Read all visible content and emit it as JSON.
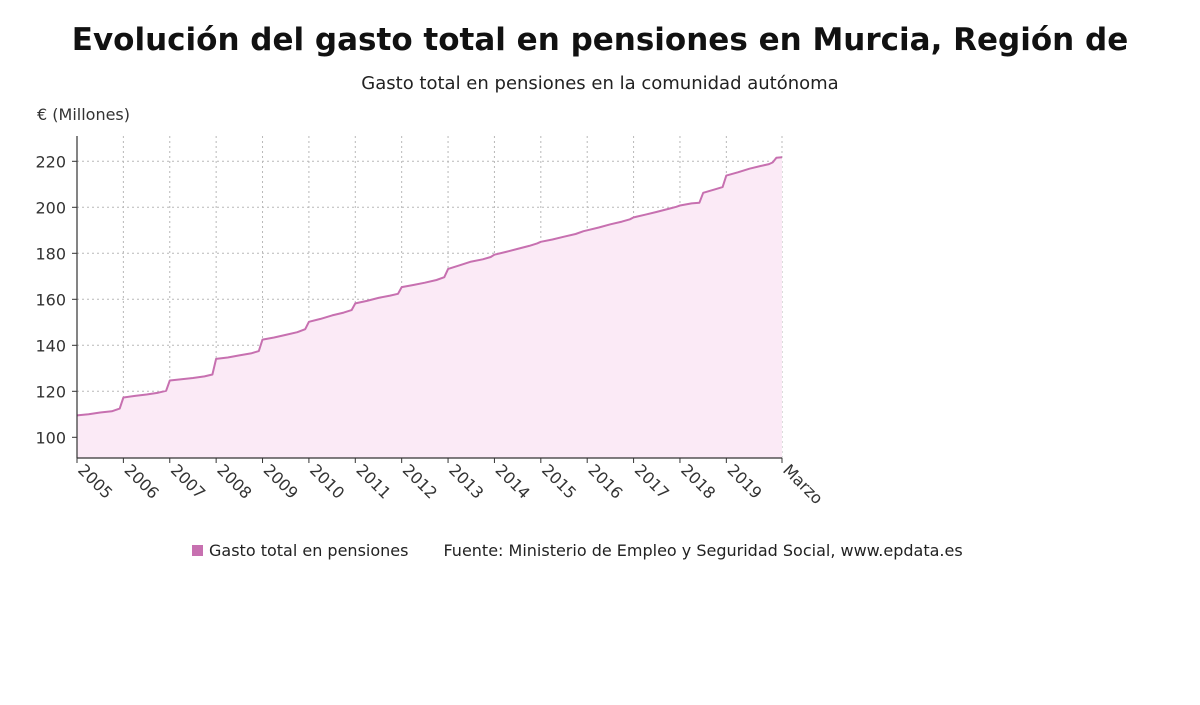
{
  "header": {
    "title": "Evolución del gasto total en pensiones en Murcia, Región de",
    "subtitle": "Gasto total en pensiones en la comunidad autónoma"
  },
  "legend": {
    "series_label": "Gasto total en pensiones",
    "source": "Fuente: Ministerio de Empleo y Seguridad Social, www.epdata.es"
  },
  "colors": {
    "line": "#c770b0",
    "fill": "#fbeaf6",
    "grid": "#b8b8b8",
    "axis": "#333333"
  },
  "chart_data": {
    "type": "area",
    "title": "Evolución del gasto total en pensiones en Murcia, Región de",
    "subtitle": "Gasto total en pensiones en la comunidad autónoma",
    "ylabel": "€ (Millones)",
    "xlabel": "",
    "ylim": [
      91,
      231
    ],
    "yticks": [
      100,
      120,
      140,
      160,
      180,
      200,
      220
    ],
    "xlim": [
      2005.0,
      2020.2
    ],
    "xticks": [
      {
        "value": 2005,
        "label": "2005"
      },
      {
        "value": 2006,
        "label": "2006"
      },
      {
        "value": 2007,
        "label": "2007"
      },
      {
        "value": 2008,
        "label": "2008"
      },
      {
        "value": 2009,
        "label": "2009"
      },
      {
        "value": 2010,
        "label": "2010"
      },
      {
        "value": 2011,
        "label": "2011"
      },
      {
        "value": 2012,
        "label": "2012"
      },
      {
        "value": 2013,
        "label": "2013"
      },
      {
        "value": 2014,
        "label": "2014"
      },
      {
        "value": 2015,
        "label": "2015"
      },
      {
        "value": 2016,
        "label": "2016"
      },
      {
        "value": 2017,
        "label": "2017"
      },
      {
        "value": 2018,
        "label": "2018"
      },
      {
        "value": 2019,
        "label": "2019"
      },
      {
        "value": 2020.2,
        "label": "Marzo"
      }
    ],
    "grid": true,
    "legend_position": "bottom",
    "series": [
      {
        "name": "Gasto total en pensiones",
        "x": [
          2005.0,
          2005.25,
          2005.5,
          2005.75,
          2005.92,
          2006.0,
          2006.25,
          2006.5,
          2006.75,
          2006.92,
          2007.0,
          2007.25,
          2007.5,
          2007.75,
          2007.92,
          2008.0,
          2008.25,
          2008.5,
          2008.75,
          2008.92,
          2009.0,
          2009.25,
          2009.5,
          2009.75,
          2009.92,
          2010.0,
          2010.25,
          2010.5,
          2010.75,
          2010.92,
          2011.0,
          2011.25,
          2011.5,
          2011.75,
          2011.92,
          2012.0,
          2012.25,
          2012.5,
          2012.75,
          2012.92,
          2013.0,
          2013.25,
          2013.5,
          2013.75,
          2013.92,
          2014.0,
          2014.25,
          2014.5,
          2014.75,
          2014.92,
          2015.0,
          2015.25,
          2015.5,
          2015.75,
          2015.92,
          2016.0,
          2016.25,
          2016.5,
          2016.75,
          2016.92,
          2017.0,
          2017.25,
          2017.5,
          2017.75,
          2017.92,
          2018.0,
          2018.25,
          2018.42,
          2018.5,
          2018.75,
          2018.92,
          2019.0,
          2019.25,
          2019.5,
          2019.75,
          2019.92,
          2020.0,
          2020.08,
          2020.2
        ],
        "values": [
          109.5,
          110.0,
          110.8,
          111.3,
          112.5,
          117.3,
          118.0,
          118.6,
          119.4,
          120.2,
          124.7,
          125.2,
          125.8,
          126.5,
          127.3,
          134.1,
          134.7,
          135.6,
          136.5,
          137.5,
          142.5,
          143.4,
          144.5,
          145.7,
          147.0,
          150.2,
          151.5,
          153.0,
          154.2,
          155.3,
          158.2,
          159.3,
          160.6,
          161.6,
          162.4,
          165.3,
          166.2,
          167.2,
          168.4,
          169.6,
          173.2,
          174.8,
          176.4,
          177.4,
          178.4,
          179.4,
          180.6,
          181.9,
          183.2,
          184.3,
          185.0,
          186.0,
          187.2,
          188.4,
          189.6,
          190.0,
          191.2,
          192.6,
          193.8,
          194.8,
          195.6,
          196.8,
          198.0,
          199.3,
          200.2,
          200.8,
          201.7,
          202.0,
          206.3,
          207.8,
          208.8,
          213.8,
          215.2,
          216.8,
          218.0,
          218.8,
          219.5,
          221.5,
          221.8
        ]
      }
    ]
  }
}
